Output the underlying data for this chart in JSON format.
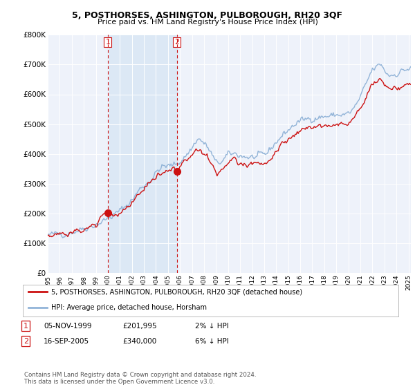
{
  "title": "5, POSTHORSES, ASHINGTON, PULBOROUGH, RH20 3QF",
  "subtitle": "Price paid vs. HM Land Registry's House Price Index (HPI)",
  "ylim": [
    0,
    800000
  ],
  "yticks": [
    0,
    100000,
    200000,
    300000,
    400000,
    500000,
    600000,
    700000,
    800000
  ],
  "ytick_labels": [
    "£0",
    "£100K",
    "£200K",
    "£300K",
    "£400K",
    "£500K",
    "£600K",
    "£700K",
    "£800K"
  ],
  "background_color": "#ffffff",
  "plot_bg_color": "#eef2fa",
  "grid_color": "#ffffff",
  "hpi_color": "#92b4d8",
  "price_color": "#cc1111",
  "shade_color": "#dce8f5",
  "marker1_date": 2000.0,
  "marker1_price": 201995,
  "marker2_date": 2005.75,
  "marker2_price": 340000,
  "legend_label_price": "5, POSTHORSES, ASHINGTON, PULBOROUGH, RH20 3QF (detached house)",
  "legend_label_hpi": "HPI: Average price, detached house, Horsham",
  "table_row1": [
    "1",
    "05-NOV-1999",
    "£201,995",
    "2% ↓ HPI"
  ],
  "table_row2": [
    "2",
    "16-SEP-2005",
    "£340,000",
    "6% ↓ HPI"
  ],
  "footer": "Contains HM Land Registry data © Crown copyright and database right 2024.\nThis data is licensed under the Open Government Licence v3.0."
}
